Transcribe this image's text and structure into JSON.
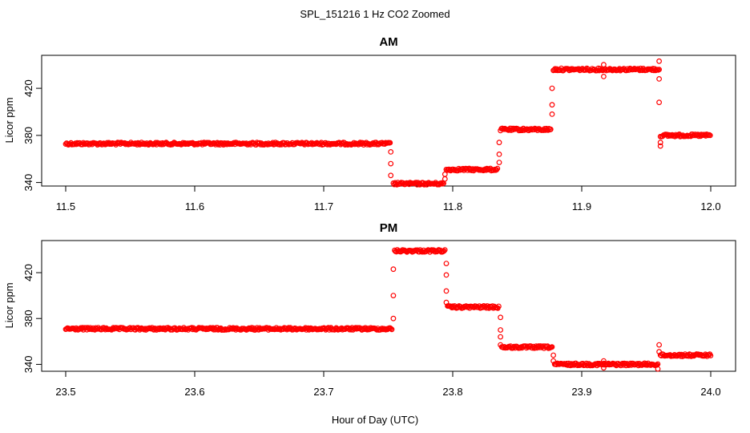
{
  "chart_data": {
    "type": "scatter",
    "title": "SPL_151216  1 Hz CO2 Zoomed",
    "xlabel": "Hour of Day (UTC)",
    "marker_color": "#ff0000",
    "marker": "open-circle",
    "panels": [
      {
        "title": "AM",
        "ylabel": "Licor ppm",
        "xlim": [
          11.5,
          12.0
        ],
        "ylim": [
          337,
          448
        ],
        "xticks": [
          11.5,
          11.6,
          11.7,
          11.8,
          11.9,
          12.0
        ],
        "xtick_labels": [
          "11.5",
          "11.6",
          "11.7",
          "11.8",
          "11.9",
          "12.0"
        ],
        "yticks": [
          340,
          380,
          420
        ],
        "ytick_labels": [
          "340",
          "380",
          "420"
        ],
        "segments": [
          {
            "x_start": 11.5,
            "x_end": 11.752,
            "y": 373
          },
          {
            "x_start": 11.754,
            "x_end": 11.793,
            "y": 339
          },
          {
            "x_start": 11.795,
            "x_end": 11.835,
            "y": 351
          },
          {
            "x_start": 11.837,
            "x_end": 11.876,
            "y": 385
          },
          {
            "x_start": 11.878,
            "x_end": 11.96,
            "y": 436
          },
          {
            "x_start": 11.962,
            "x_end": 12.0,
            "y": 380
          }
        ],
        "transition_points": [
          {
            "x": 11.752,
            "y": 366
          },
          {
            "x": 11.752,
            "y": 356
          },
          {
            "x": 11.752,
            "y": 346
          },
          {
            "x": 11.794,
            "y": 343
          },
          {
            "x": 11.794,
            "y": 347
          },
          {
            "x": 11.836,
            "y": 357
          },
          {
            "x": 11.836,
            "y": 364
          },
          {
            "x": 11.836,
            "y": 374
          },
          {
            "x": 11.877,
            "y": 398
          },
          {
            "x": 11.877,
            "y": 406
          },
          {
            "x": 11.877,
            "y": 420
          },
          {
            "x": 11.917,
            "y": 440
          },
          {
            "x": 11.917,
            "y": 430
          },
          {
            "x": 11.96,
            "y": 443
          },
          {
            "x": 11.96,
            "y": 428
          },
          {
            "x": 11.96,
            "y": 408
          },
          {
            "x": 11.961,
            "y": 379
          },
          {
            "x": 11.961,
            "y": 374
          },
          {
            "x": 11.961,
            "y": 371
          }
        ]
      },
      {
        "title": "PM",
        "ylabel": "Licor ppm",
        "xlim": [
          23.5,
          24.0
        ],
        "ylim": [
          334,
          448
        ],
        "xticks": [
          23.5,
          23.6,
          23.7,
          23.8,
          23.9,
          24.0
        ],
        "xtick_labels": [
          "23.5",
          "23.6",
          "23.7",
          "23.8",
          "23.9",
          "24.0"
        ],
        "yticks": [
          340,
          380,
          420
        ],
        "ytick_labels": [
          "340",
          "380",
          "420"
        ],
        "segments": [
          {
            "x_start": 23.5,
            "x_end": 23.753,
            "y": 371
          },
          {
            "x_start": 23.755,
            "x_end": 23.794,
            "y": 439
          },
          {
            "x_start": 23.796,
            "x_end": 23.836,
            "y": 390
          },
          {
            "x_start": 23.838,
            "x_end": 23.877,
            "y": 355
          },
          {
            "x_start": 23.879,
            "x_end": 23.959,
            "y": 340
          },
          {
            "x_start": 23.961,
            "x_end": 24.0,
            "y": 348
          }
        ],
        "transition_points": [
          {
            "x": 23.754,
            "y": 380
          },
          {
            "x": 23.754,
            "y": 400
          },
          {
            "x": 23.754,
            "y": 423
          },
          {
            "x": 23.795,
            "y": 428
          },
          {
            "x": 23.795,
            "y": 418
          },
          {
            "x": 23.795,
            "y": 404
          },
          {
            "x": 23.795,
            "y": 394
          },
          {
            "x": 23.837,
            "y": 381
          },
          {
            "x": 23.837,
            "y": 370
          },
          {
            "x": 23.837,
            "y": 364
          },
          {
            "x": 23.837,
            "y": 357
          },
          {
            "x": 23.878,
            "y": 348
          },
          {
            "x": 23.878,
            "y": 343
          },
          {
            "x": 23.917,
            "y": 337
          },
          {
            "x": 23.917,
            "y": 343
          },
          {
            "x": 23.959,
            "y": 336
          },
          {
            "x": 23.96,
            "y": 357
          },
          {
            "x": 23.96,
            "y": 351
          }
        ]
      }
    ]
  }
}
